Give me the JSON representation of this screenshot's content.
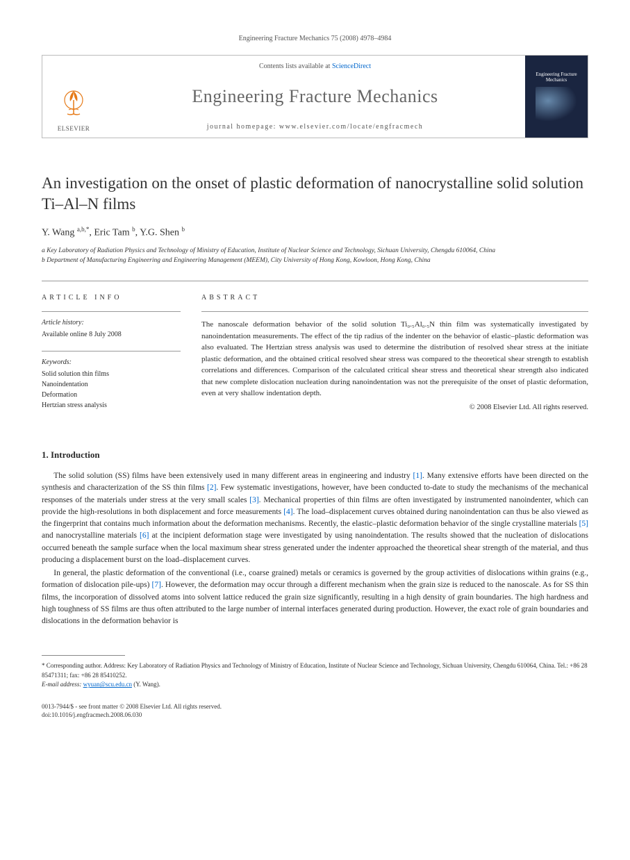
{
  "header": {
    "citation": "Engineering Fracture Mechanics 75 (2008) 4978–4984"
  },
  "banner": {
    "contents_prefix": "Contents lists available at ",
    "contents_link": "ScienceDirect",
    "journal": "Engineering Fracture Mechanics",
    "homepage_label": "journal homepage: ",
    "homepage_url": "www.elsevier.com/locate/engfracmech",
    "publisher": "ELSEVIER",
    "cover_title": "Engineering Fracture Mechanics"
  },
  "article": {
    "title": "An investigation on the onset of plastic deformation of nanocrystalline solid solution Ti–Al–N films",
    "authors_html": "Y. Wang <sup>a,b,*</sup>, Eric Tam <sup>b</sup>, Y.G. Shen <sup>b</sup>",
    "affiliations": [
      "a Key Laboratory of Radiation Physics and Technology of Ministry of Education, Institute of Nuclear Science and Technology, Sichuan University, Chengdu 610064, China",
      "b Department of Manufacturing Engineering and Engineering Management (MEEM), City University of Hong Kong, Kowloon, Hong Kong, China"
    ]
  },
  "info": {
    "label": "ARTICLE INFO",
    "history_title": "Article history:",
    "history_text": "Available online 8 July 2008",
    "keywords_title": "Keywords:",
    "keywords": [
      "Solid solution thin films",
      "Nanoindentation",
      "Deformation",
      "Hertzian stress analysis"
    ]
  },
  "abstract": {
    "label": "ABSTRACT",
    "text": "The nanoscale deformation behavior of the solid solution Ti₀.₅Al₀.₅N thin film was systematically investigated by nanoindentation measurements. The effect of the tip radius of the indenter on the behavior of elastic–plastic deformation was also evaluated. The Hertzian stress analysis was used to determine the distribution of resolved shear stress at the initiate plastic deformation, and the obtained critical resolved shear stress was compared to the theoretical shear strength to establish correlations and differences. Comparison of the calculated critical shear stress and theoretical shear strength also indicated that new complete dislocation nucleation during nanoindentation was not the prerequisite of the onset of plastic deformation, even at very shallow indentation depth.",
    "copyright": "© 2008 Elsevier Ltd. All rights reserved."
  },
  "body": {
    "section_number": "1.",
    "section_title": "Introduction",
    "para1": "The solid solution (SS) films have been extensively used in many different areas in engineering and industry [1]. Many extensive efforts have been directed on the synthesis and characterization of the SS thin films [2]. Few systematic investigations, however, have been conducted to-date to study the mechanisms of the mechanical responses of the materials under stress at the very small scales [3]. Mechanical properties of thin films are often investigated by instrumented nanoindenter, which can provide the high-resolutions in both displacement and force measurements [4]. The load–displacement curves obtained during nanoindentation can thus be also viewed as the fingerprint that contains much information about the deformation mechanisms. Recently, the elastic–plastic deformation behavior of the single crystalline materials [5] and nanocrystalline materials [6] at the incipient deformation stage were investigated by using nanoindentation. The results showed that the nucleation of dislocations occurred beneath the sample surface when the local maximum shear stress generated under the indenter approached the theoretical shear strength of the material, and thus producing a displacement burst on the load–displacement curves.",
    "para2": "In general, the plastic deformation of the conventional (i.e., coarse grained) metals or ceramics is governed by the group activities of dislocations within grains (e.g., formation of dislocation pile-ups) [7]. However, the deformation may occur through a different mechanism when the grain size is reduced to the nanoscale. As for SS thin films, the incorporation of dissolved atoms into solvent lattice reduced the grain size significantly, resulting in a high density of grain boundaries. The high hardness and high toughness of SS films are thus often attributed to the large number of internal interfaces generated during production. However, the exact role of grain boundaries and dislocations in the deformation behavior is"
  },
  "footnotes": {
    "corresponding": "* Corresponding author. Address: Key Laboratory of Radiation Physics and Technology of Ministry of Education, Institute of Nuclear Science and Technology, Sichuan University, Chengdu 610064, China. Tel.: +86 28 85471311; fax: +86 28 85410252.",
    "email_label": "E-mail address: ",
    "email": "wyuan@scu.edu.cn",
    "email_author": " (Y. Wang)."
  },
  "bottom": {
    "line1": "0013-7944/$ - see front matter © 2008 Elsevier Ltd. All rights reserved.",
    "line2": "doi:10.1016/j.engfracmech.2008.06.030"
  },
  "refs": [
    "[1]",
    "[2]",
    "[3]",
    "[4]",
    "[5]",
    "[6]",
    "[7]"
  ]
}
